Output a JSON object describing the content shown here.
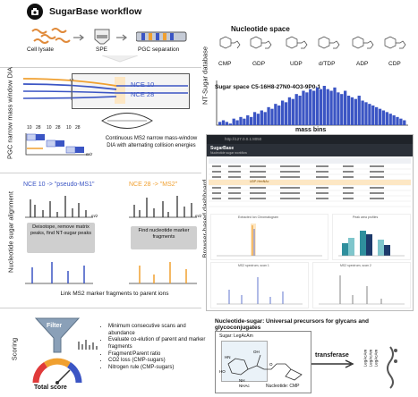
{
  "header": {
    "title": "SugarBase workflow"
  },
  "left": {
    "row1": {
      "cell_lysate": "Cell lysate",
      "spe": "SPE",
      "pgc": "PGC separation"
    },
    "row2": {
      "side_label": "PGC narrow mass window DIA",
      "nce10": "NCE 10",
      "nce28": "NCE 28",
      "caption": "Continuous MS2 narrow mass-window DIA with alternating collision energies",
      "ticks": [
        "10",
        "28",
        "10",
        "28",
        "10",
        "28"
      ],
      "axis": "m/z"
    },
    "row3": {
      "side_label": "Nucleotide sugar alignment",
      "left_header": "NCE 10 -> \"pseudo-MS1\"",
      "right_header": "NCE 28 -> \"MS2\"",
      "left_box": "Deisotope, remove matrix peaks, find NT-sugar peaks",
      "right_box": "Find nucleotide marker fragments",
      "axis": "m/z",
      "link": "Link MS2 marker fragments to parent ions"
    },
    "row4": {
      "side_label": "Scoring",
      "filter": "Filter",
      "total_score": "Total score",
      "bullets": [
        "Minimum consecutive scans and abundance",
        "Evaluate co-elution of parent and marker fragments",
        "Fragment/Parent ratio",
        "CO2 loss (CMP-sugars)",
        "Nitrogen rule (CMP-sugars)"
      ]
    }
  },
  "right": {
    "db": {
      "side_label": "NT-Sugar database",
      "title": "Nucleotide space",
      "molecules": [
        "CMP",
        "GDP",
        "UDP",
        "d/TDP",
        "ADP",
        "CDP"
      ],
      "sugar_space": "Sugar space C5-16H8-27N0-4O3-9P0-1",
      "mass_bins": "mass bins",
      "histogram": [
        2,
        3,
        2,
        1,
        4,
        3,
        5,
        4,
        6,
        5,
        8,
        7,
        9,
        8,
        11,
        10,
        13,
        12,
        15,
        14,
        17,
        16,
        19,
        18,
        21,
        20,
        22,
        21,
        23,
        22,
        24,
        22,
        21,
        23,
        20,
        19,
        21,
        18,
        17,
        16,
        18,
        15,
        14,
        13,
        12,
        11,
        10,
        9,
        8,
        7,
        6,
        5,
        4,
        3
      ]
    },
    "dash": {
      "side_label": "Browser-based dashboard",
      "url": "http://127.0.0.1:8050",
      "app_name": "SugarBase",
      "subtitle": "Nucleotide sugar workflow",
      "hilite": "UDP-HexNAc",
      "chart_titles": [
        "Extracted Ion Chromatogram",
        "Peak area profiles",
        "MS2 spectrum, scan 1",
        "MS2 spectrum, scan 2"
      ]
    },
    "nts": {
      "title": "Nucleotide-sugar: Universal precursors for glycans and glycoconjugates",
      "sugar_label": "Sugar: LegAcAm",
      "nucleotide_label": "Nucleotide: CMP",
      "transferase": "transferase",
      "products": [
        "LegAcAm",
        "LegAcAm",
        "LegAcAm"
      ],
      "atoms": [
        "HN",
        "NH",
        "NHAc",
        "OH",
        "HO",
        "O"
      ]
    }
  },
  "colors": {
    "blue": "#3b55c4",
    "orange": "#f0a030",
    "grey": "#d9d9d9",
    "dark": "#1f2329"
  }
}
